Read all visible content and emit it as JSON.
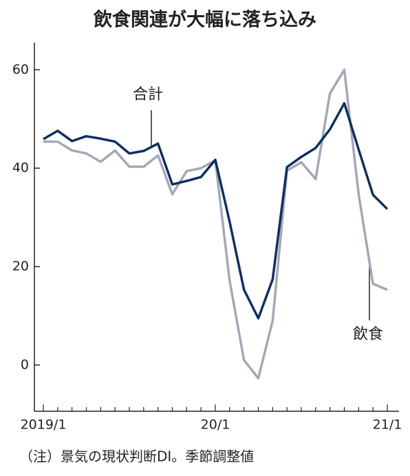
{
  "chart_data": {
    "type": "line",
    "title": "飲食関連が大幅に落ち込み",
    "note": "（注）景気の現状判断DI。季節調整値",
    "categories": [
      "2019/1",
      null,
      null,
      null,
      null,
      null,
      null,
      null,
      null,
      null,
      null,
      null,
      "20/1",
      null,
      null,
      null,
      null,
      null,
      null,
      null,
      null,
      null,
      null,
      null,
      "21/1"
    ],
    "series": [
      {
        "name": "合計",
        "color": "#0d2f5e",
        "values": [
          45.9,
          47.6,
          45.5,
          46.5,
          46,
          45.4,
          43,
          43.5,
          45,
          36.7,
          37.4,
          38.2,
          41.7,
          29.1,
          15.3,
          9.5,
          17.4,
          40.2,
          42.3,
          44.1,
          47.9,
          53.2,
          43.8,
          34.6,
          31.7
        ]
      },
      {
        "name": "飲食",
        "color": "#a3a8b8",
        "values": [
          45.4,
          45.4,
          43.6,
          43,
          41.3,
          43.6,
          40.3,
          40.3,
          42.6,
          34.7,
          39.4,
          40,
          41.6,
          17.1,
          1,
          -2.7,
          9,
          39.5,
          41.2,
          37.8,
          55.2,
          60,
          34.7,
          16.5,
          15.3
        ]
      }
    ],
    "ylim": [
      -9.4,
      65.5
    ],
    "yticks": [
      0,
      20,
      40,
      60
    ]
  }
}
